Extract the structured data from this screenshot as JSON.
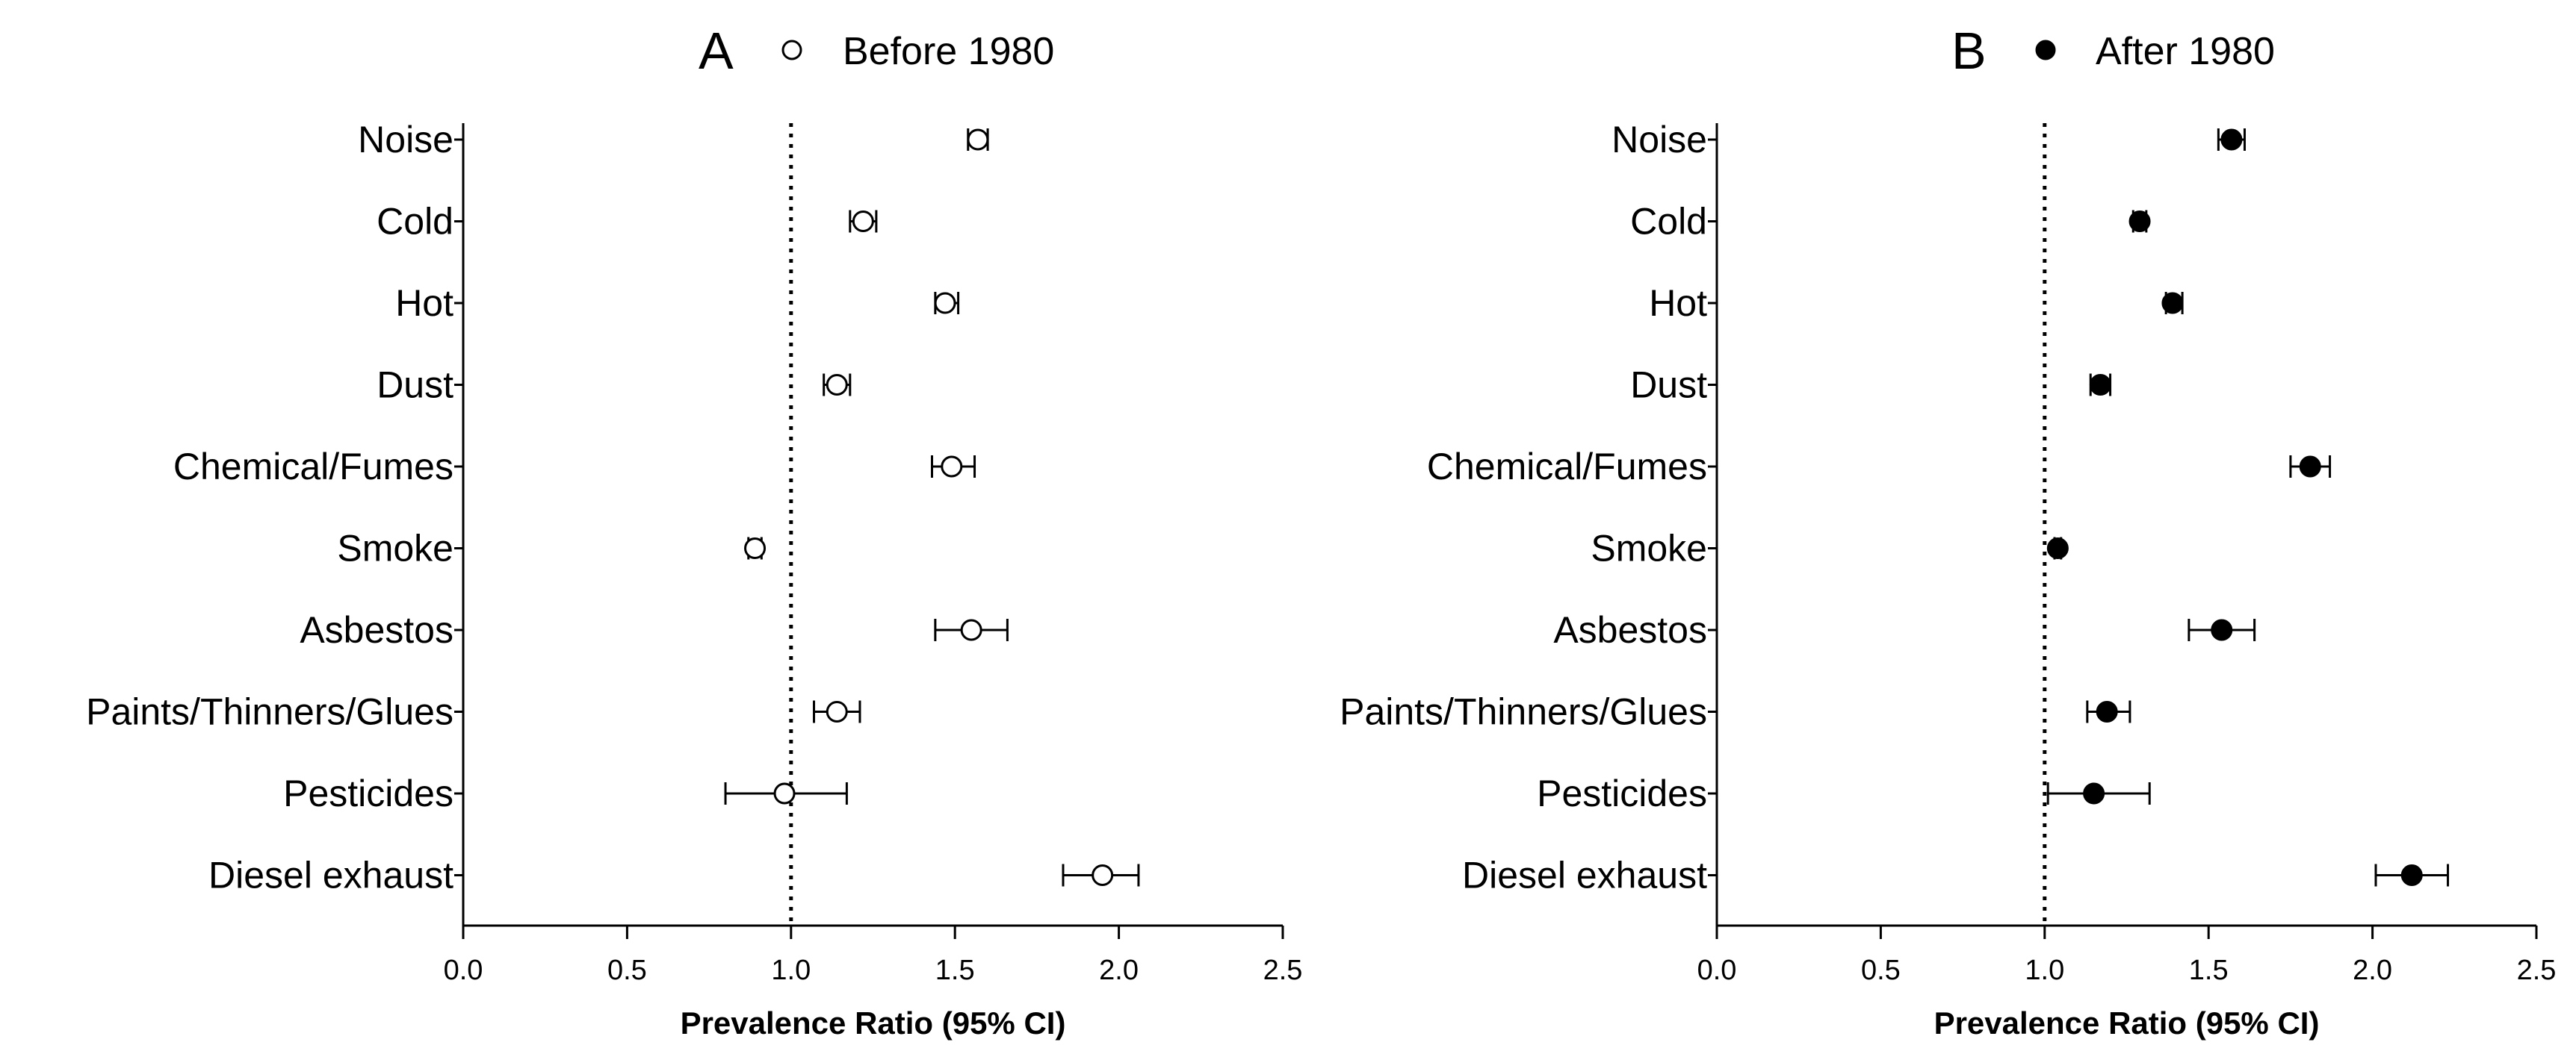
{
  "chart_data": [
    {
      "type": "scatter",
      "panel_label": "A",
      "legend": "Before 1980",
      "marker": "open-circle",
      "xlabel": "Prevalence Ratio (95% CI)",
      "xlim": [
        0.0,
        2.5
      ],
      "xticks": [
        "0.0",
        "0.5",
        "1.0",
        "1.5",
        "2.0",
        "2.5"
      ],
      "reference_line": 1.0,
      "categories": [
        "Noise",
        "Cold",
        "Hot",
        "Dust",
        "Chemical/Fumes",
        "Smoke",
        "Asbestos",
        "Paints/Thinners/Glues",
        "Pesticides",
        "Diesel exhaust"
      ],
      "estimates": [
        1.57,
        1.22,
        1.47,
        1.14,
        1.49,
        0.89,
        1.55,
        1.14,
        0.98,
        1.95
      ],
      "ci_lower": [
        1.54,
        1.18,
        1.44,
        1.1,
        1.43,
        0.87,
        1.44,
        1.07,
        0.8,
        1.83
      ],
      "ci_upper": [
        1.6,
        1.26,
        1.51,
        1.18,
        1.56,
        0.91,
        1.66,
        1.21,
        1.17,
        2.06
      ]
    },
    {
      "type": "scatter",
      "panel_label": "B",
      "legend": "After 1980",
      "marker": "filled-circle",
      "xlabel": "Prevalence Ratio (95% CI)",
      "xlim": [
        0.0,
        2.5
      ],
      "xticks": [
        "0.0",
        "0.5",
        "1.0",
        "1.5",
        "2.0",
        "2.5"
      ],
      "reference_line": 1.0,
      "categories": [
        "Noise",
        "Cold",
        "Hot",
        "Dust",
        "Chemical/Fumes",
        "Smoke",
        "Asbestos",
        "Paints/Thinners/Glues",
        "Pesticides",
        "Diesel exhaust"
      ],
      "estimates": [
        1.57,
        1.29,
        1.39,
        1.17,
        1.81,
        1.04,
        1.54,
        1.19,
        1.15,
        2.12
      ],
      "ci_lower": [
        1.53,
        1.27,
        1.37,
        1.14,
        1.75,
        1.03,
        1.44,
        1.13,
        1.01,
        2.01
      ],
      "ci_upper": [
        1.61,
        1.31,
        1.42,
        1.2,
        1.87,
        1.05,
        1.64,
        1.26,
        1.32,
        2.23
      ]
    }
  ]
}
